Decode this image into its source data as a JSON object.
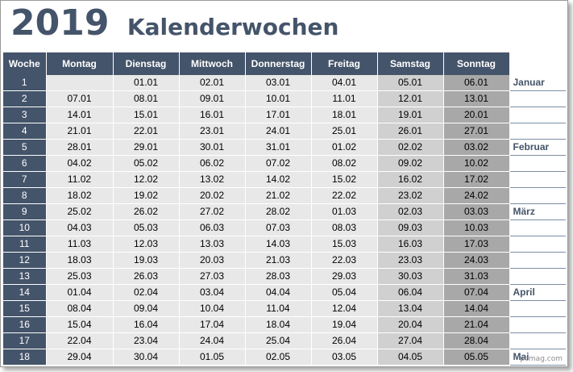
{
  "header": {
    "year": "2019",
    "title": "Kalenderwochen"
  },
  "columns": [
    "Woche",
    "Montag",
    "Dienstag",
    "Mittwoch",
    "Donnerstag",
    "Freitag",
    "Samstag",
    "Sonntag"
  ],
  "rows": [
    {
      "week": "1",
      "days": [
        "",
        "01.01",
        "02.01",
        "03.01",
        "04.01",
        "05.01",
        "06.01"
      ],
      "month": "Januar"
    },
    {
      "week": "2",
      "days": [
        "07.01",
        "08.01",
        "09.01",
        "10.01",
        "11.01",
        "12.01",
        "13.01"
      ],
      "month": ""
    },
    {
      "week": "3",
      "days": [
        "14.01",
        "15.01",
        "16.01",
        "17.01",
        "18.01",
        "19.01",
        "20.01"
      ],
      "month": ""
    },
    {
      "week": "4",
      "days": [
        "21.01",
        "22.01",
        "23.01",
        "24.01",
        "25.01",
        "26.01",
        "27.01"
      ],
      "month": ""
    },
    {
      "week": "5",
      "days": [
        "28.01",
        "29.01",
        "30.01",
        "31.01",
        "01.02",
        "02.02",
        "03.02"
      ],
      "month": "Februar"
    },
    {
      "week": "6",
      "days": [
        "04.02",
        "05.02",
        "06.02",
        "07.02",
        "08.02",
        "09.02",
        "10.02"
      ],
      "month": ""
    },
    {
      "week": "7",
      "days": [
        "11.02",
        "12.02",
        "13.02",
        "14.02",
        "15.02",
        "16.02",
        "17.02"
      ],
      "month": ""
    },
    {
      "week": "8",
      "days": [
        "18.02",
        "19.02",
        "20.02",
        "21.02",
        "22.02",
        "23.02",
        "24.02"
      ],
      "month": ""
    },
    {
      "week": "9",
      "days": [
        "25.02",
        "26.02",
        "27.02",
        "28.02",
        "01.03",
        "02.03",
        "03.03"
      ],
      "month": "März"
    },
    {
      "week": "10",
      "days": [
        "04.03",
        "05.03",
        "06.03",
        "07.03",
        "08.03",
        "09.03",
        "10.03"
      ],
      "month": ""
    },
    {
      "week": "11",
      "days": [
        "11.03",
        "12.03",
        "13.03",
        "14.03",
        "15.03",
        "16.03",
        "17.03"
      ],
      "month": ""
    },
    {
      "week": "12",
      "days": [
        "18.03",
        "19.03",
        "20.03",
        "21.03",
        "22.03",
        "23.03",
        "24.03"
      ],
      "month": ""
    },
    {
      "week": "13",
      "days": [
        "25.03",
        "26.03",
        "27.03",
        "28.03",
        "29.03",
        "30.03",
        "31.03"
      ],
      "month": ""
    },
    {
      "week": "14",
      "days": [
        "01.04",
        "02.04",
        "03.04",
        "04.04",
        "05.04",
        "06.04",
        "07.04"
      ],
      "month": "April"
    },
    {
      "week": "15",
      "days": [
        "08.04",
        "09.04",
        "10.04",
        "11.04",
        "12.04",
        "13.04",
        "14.04"
      ],
      "month": ""
    },
    {
      "week": "16",
      "days": [
        "15.04",
        "16.04",
        "17.04",
        "18.04",
        "19.04",
        "20.04",
        "21.04"
      ],
      "month": ""
    },
    {
      "week": "17",
      "days": [
        "22.04",
        "23.04",
        "24.04",
        "25.04",
        "26.04",
        "27.04",
        "28.04"
      ],
      "month": ""
    },
    {
      "week": "18",
      "days": [
        "29.04",
        "30.04",
        "01.05",
        "02.05",
        "03.05",
        "04.05",
        "05.05"
      ],
      "month": "Mai"
    }
  ],
  "watermark": "pcmag.com",
  "colors": {
    "header_bg": "#44546a",
    "weekday_bg": "#e8e8e8",
    "saturday_bg": "#d0d0d0",
    "sunday_bg": "#a8a8a8"
  }
}
